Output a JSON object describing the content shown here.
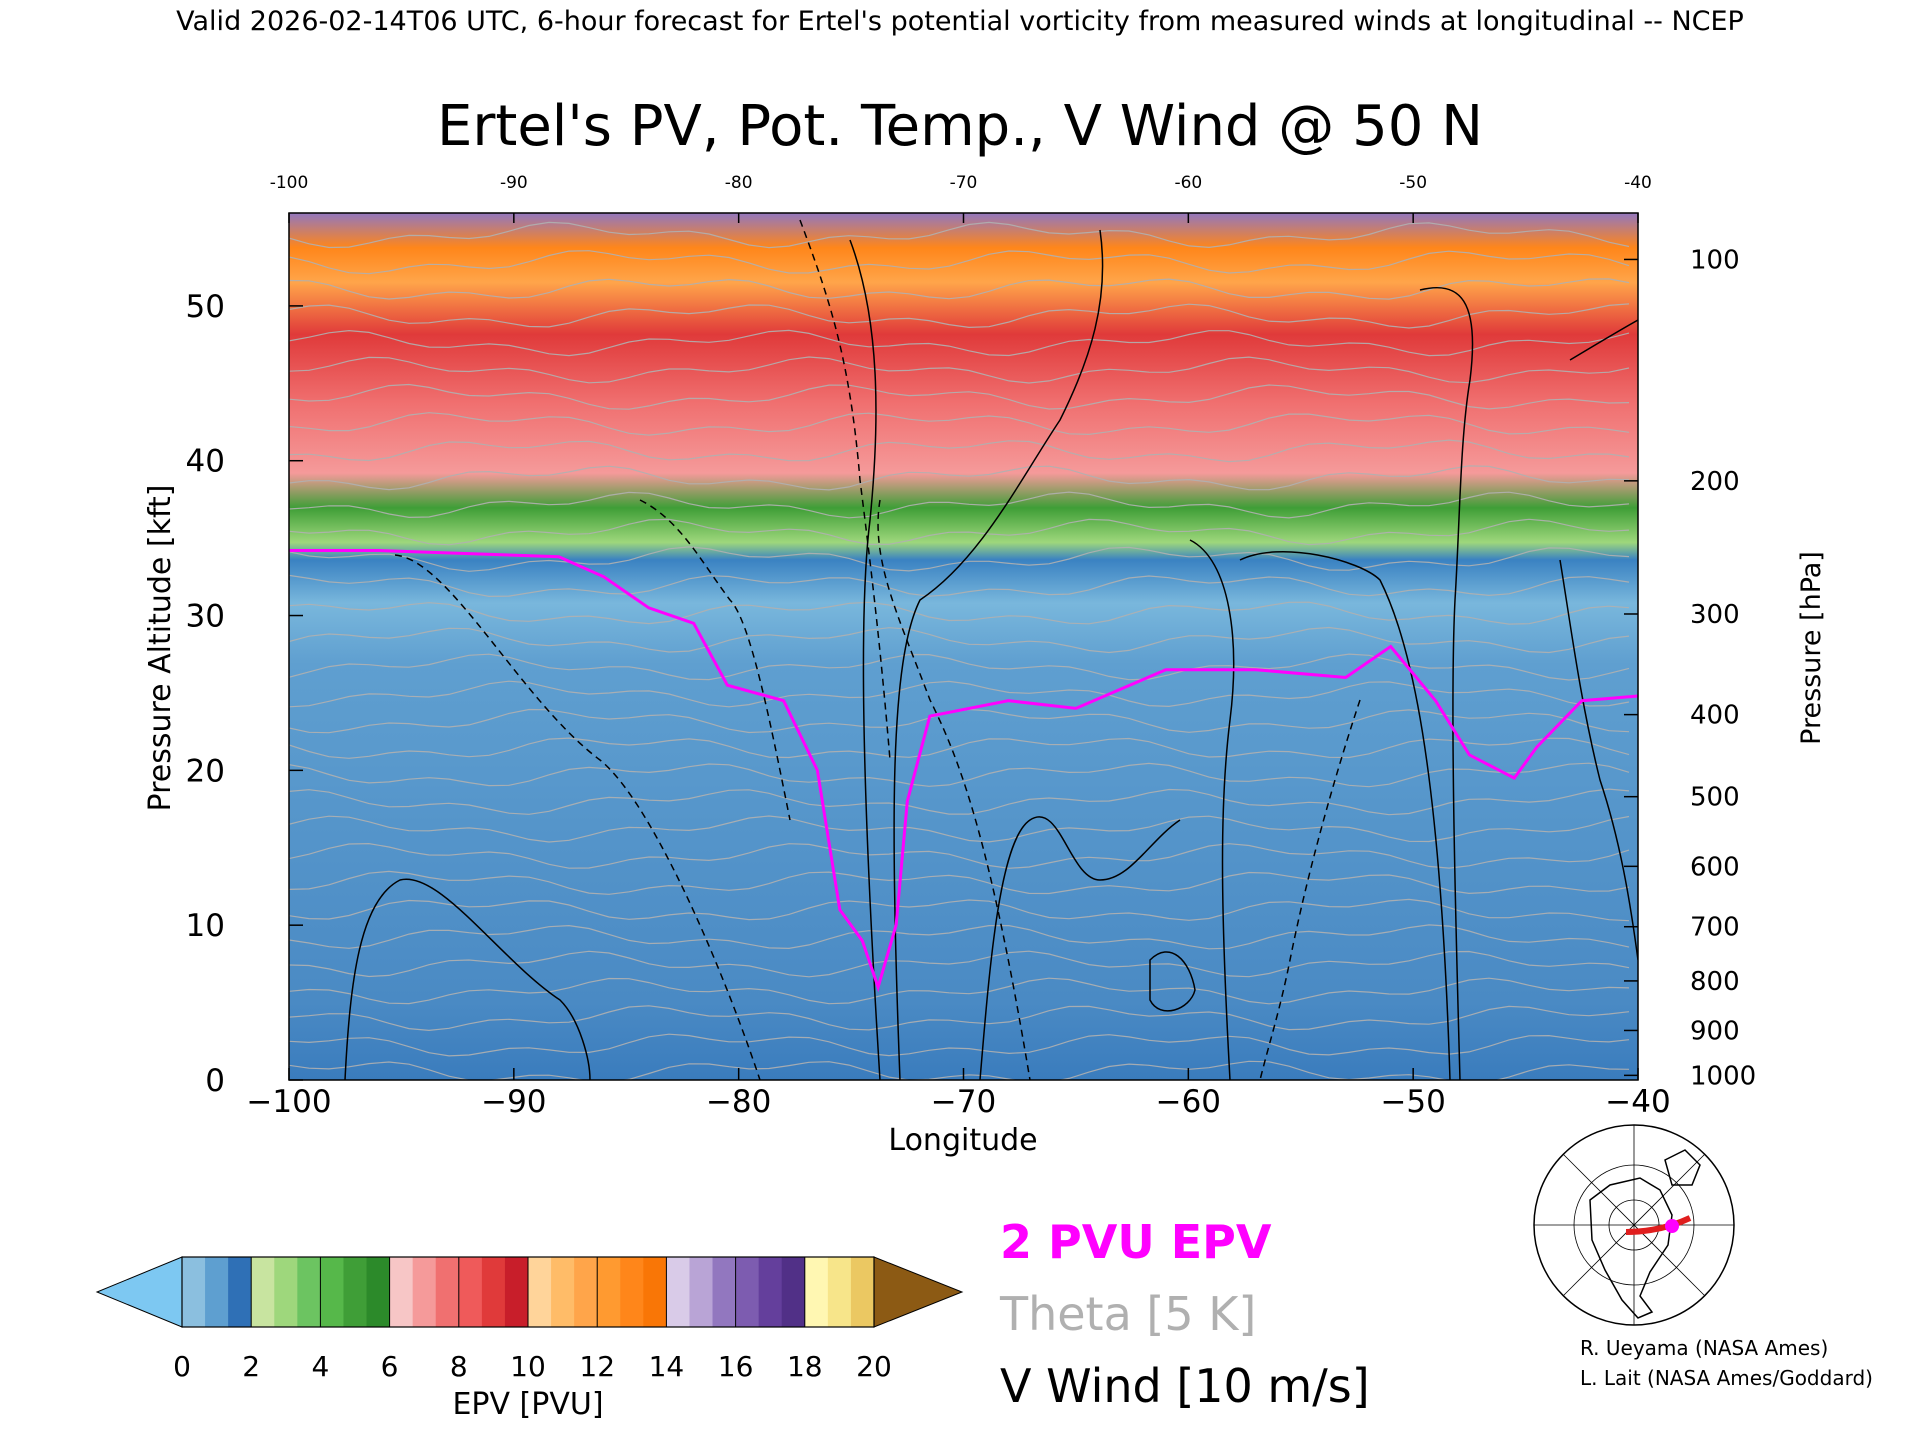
{
  "header": "Valid 2026-02-14T06 UTC, 6-hour forecast for Ertel's potential vorticity from measured winds at longitudinal -- NCEP",
  "chart_data": {
    "type": "heatmap",
    "title": "Ertel's PV, Pot. Temp., V Wind @ 50 N",
    "xlabel": "Longitude",
    "ylabel": "Pressure Altitude [kft]",
    "y2label": "Pressure [hPa]",
    "xlim": [
      -100,
      -40
    ],
    "ylim": [
      0,
      56
    ],
    "x_ticks": [
      -100,
      -90,
      -80,
      -70,
      -60,
      -50,
      -40
    ],
    "x_tick_labels": [
      "−100",
      "−90",
      "−80",
      "−70",
      "−60",
      "−50",
      "−40"
    ],
    "top_tick_labels": [
      "-100",
      "-90",
      "-80",
      "-70",
      "-60",
      "-50",
      "-40"
    ],
    "y_ticks": [
      0,
      10,
      20,
      30,
      40,
      50
    ],
    "pressure_ticks": [
      {
        "label": "100",
        "kft": 53.0
      },
      {
        "label": "200",
        "kft": 38.7
      },
      {
        "label": "300",
        "kft": 30.1
      },
      {
        "label": "400",
        "kft": 23.6
      },
      {
        "label": "500",
        "kft": 18.3
      },
      {
        "label": "600",
        "kft": 13.8
      },
      {
        "label": "700",
        "kft": 9.9
      },
      {
        "label": "800",
        "kft": 6.4
      },
      {
        "label": "900",
        "kft": 3.2
      },
      {
        "label": "1000",
        "kft": 0.3
      }
    ],
    "tropopause_2pvu_kft": [
      [
        -100,
        34.2
      ],
      [
        -96,
        34.2
      ],
      [
        -92,
        34.0
      ],
      [
        -88,
        33.8
      ],
      [
        -86,
        32.5
      ],
      [
        -84,
        30.5
      ],
      [
        -82,
        29.5
      ],
      [
        -80.5,
        25.5
      ],
      [
        -78,
        24.5
      ],
      [
        -76.5,
        20.0
      ],
      [
        -75.5,
        11.0
      ],
      [
        -74.5,
        9.0
      ],
      [
        -73.8,
        6.0
      ],
      [
        -73,
        10.0
      ],
      [
        -72.5,
        18.0
      ],
      [
        -71.5,
        23.5
      ],
      [
        -68,
        24.5
      ],
      [
        -65,
        24.0
      ],
      [
        -61,
        26.5
      ],
      [
        -57,
        26.5
      ],
      [
        -53,
        26.0
      ],
      [
        -51,
        28.0
      ],
      [
        -49,
        24.5
      ],
      [
        -47.5,
        21.0
      ],
      [
        -45.5,
        19.5
      ],
      [
        -44.5,
        21.5
      ],
      [
        -42.5,
        24.5
      ],
      [
        -40,
        24.8
      ]
    ],
    "colorbar": {
      "label": "EPV [PVU]",
      "ticks": [
        "0",
        "2",
        "4",
        "6",
        "8",
        "10",
        "12",
        "14",
        "16",
        "18",
        "20"
      ],
      "underflow_color": "#7dc8f2",
      "overflow_color": "#8c5a14",
      "colors": [
        [
          "#8bbfdf",
          "#5e9fd0",
          "#2f70b6"
        ],
        [
          "#c8e4a0",
          "#9ed77c",
          "#6cc461"
        ],
        [
          "#56b84a",
          "#3f9e37",
          "#2c8a2a"
        ],
        [
          "#f7c6c6",
          "#f59a9a",
          "#f07070"
        ],
        [
          "#ef5a5a",
          "#e03a3a",
          "#c81e2a"
        ],
        [
          "#ffd49a",
          "#ffbc68",
          "#ffa54a"
        ],
        [
          "#ff9a30",
          "#ff861a",
          "#f97606"
        ],
        [
          "#d9cbe8",
          "#b9a4d6",
          "#9277bf"
        ],
        [
          "#7d5cb0",
          "#643f9c",
          "#513087"
        ],
        [
          "#fff7b2",
          "#f7e58a",
          "#ebc862"
        ]
      ]
    },
    "legend": [
      {
        "label": "2 PVU EPV",
        "color": "#ff00ff"
      },
      {
        "label": "Theta [5 K]",
        "color": "#b0b0b0"
      },
      {
        "label": "V Wind [10 m/s]",
        "color": "#000000"
      }
    ],
    "credits": [
      "R. Ueyama (NASA Ames)",
      "L. Lait (NASA Ames/Goddard)"
    ]
  }
}
